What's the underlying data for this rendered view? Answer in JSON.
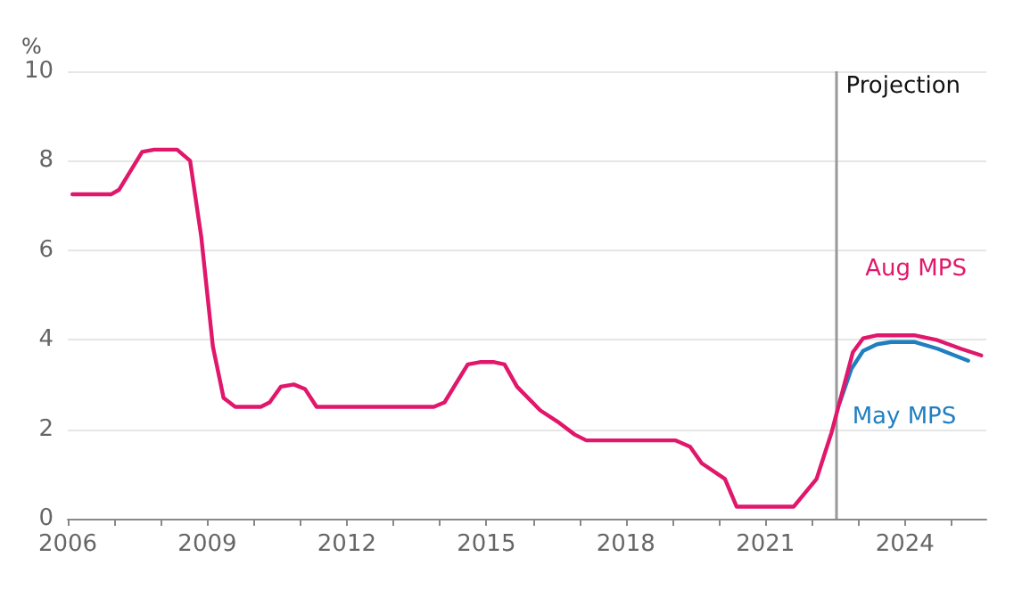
{
  "chart_data": {
    "type": "line",
    "ylabel": "%",
    "xlim": [
      2006,
      2025.75
    ],
    "ylim": [
      0,
      10
    ],
    "xticks": [
      2006,
      {
        "value": 2007,
        "label": null
      },
      {
        "value": 2008,
        "label": null
      },
      2009,
      {
        "value": 2010,
        "label": null
      },
      {
        "value": 2011,
        "label": null
      },
      2012,
      {
        "value": 2013,
        "label": null
      },
      {
        "value": 2014,
        "label": null
      },
      2015,
      {
        "value": 2016,
        "label": null
      },
      {
        "value": 2017,
        "label": null
      },
      2018,
      {
        "value": 2019,
        "label": null
      },
      {
        "value": 2020,
        "label": null
      },
      2021,
      {
        "value": 2022,
        "label": null
      },
      {
        "value": 2023,
        "label": null
      },
      2024,
      {
        "value": 2025,
        "label": null
      }
    ],
    "yticks": [
      0,
      2,
      4,
      6,
      8,
      10
    ],
    "grid": "y",
    "legend": false,
    "marker": "none",
    "line_style": "solid",
    "ref_lines": [
      {
        "axis": "x",
        "value": 2022.5,
        "label": "Projection",
        "color": "#999999"
      }
    ],
    "series": [
      {
        "name": "Aug MPS",
        "color": "#e0176b",
        "x": [
          2006.1,
          2006.93,
          2007.1,
          2007.6,
          2007.86,
          2008.35,
          2008.63,
          2008.87,
          2009.12,
          2009.35,
          2009.6,
          2010.15,
          2010.34,
          2010.58,
          2010.86,
          2011.1,
          2011.35,
          2013.87,
          2014.1,
          2014.6,
          2014.86,
          2015.17,
          2015.39,
          2015.66,
          2016.16,
          2016.53,
          2016.9,
          2017.15,
          2019.07,
          2019.38,
          2019.63,
          2020.13,
          2020.38,
          2021.61,
          2022.1,
          2022.42,
          2022.88,
          2023.1,
          2023.41,
          2024.2,
          2024.7,
          2025.2,
          2025.64
        ],
        "values": [
          7.25,
          7.25,
          7.35,
          8.2,
          8.25,
          8.25,
          8.0,
          6.3,
          3.85,
          2.7,
          2.5,
          2.5,
          2.6,
          2.95,
          3.0,
          2.9,
          2.5,
          2.5,
          2.6,
          3.45,
          3.5,
          3.5,
          3.45,
          2.95,
          2.42,
          2.17,
          1.88,
          1.75,
          1.75,
          1.61,
          1.24,
          0.89,
          0.27,
          0.27,
          0.89,
          1.92,
          3.72,
          4.03,
          4.1,
          4.1,
          3.99,
          3.8,
          3.65
        ]
      },
      {
        "name": "May MPS",
        "color": "#1f7fc0",
        "x": [
          2022.6,
          2022.85,
          2023.1,
          2023.4,
          2023.7,
          2024.2,
          2024.7,
          2025.36
        ],
        "values": [
          2.6,
          3.35,
          3.75,
          3.9,
          3.95,
          3.95,
          3.8,
          3.53
        ]
      }
    ]
  }
}
